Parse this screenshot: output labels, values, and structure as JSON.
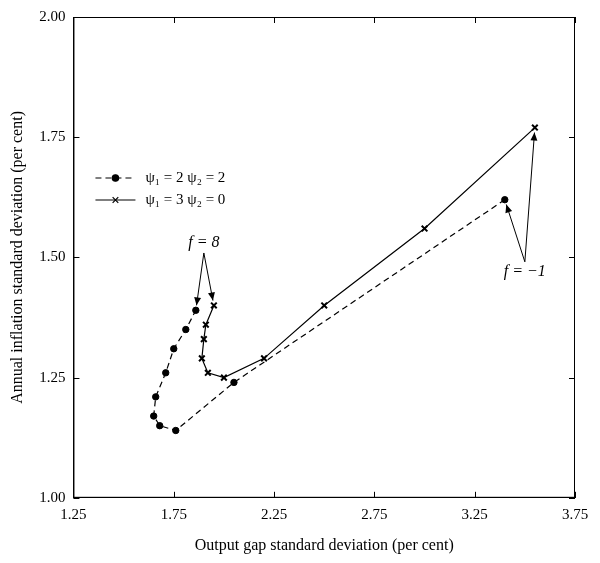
{
  "chart_data": {
    "type": "line",
    "x_label": "Output gap standard deviation (per cent)",
    "y_label": "Annual inflation standard deviation (per cent)",
    "xlim": [
      1.25,
      3.75
    ],
    "xticks": [
      1.25,
      1.75,
      2.25,
      2.75,
      3.25,
      3.75
    ],
    "ylim": [
      1,
      2
    ],
    "yticks": [
      {
        "value": 1,
        "label": "1.00"
      },
      1.25,
      {
        "value": 1.5,
        "label": "1.50"
      },
      1.75,
      {
        "value": 2,
        "label": "2.00"
      }
    ],
    "grid": false,
    "legend": "upper left",
    "series": [
      {
        "name": "ψ₁ = 2 ψ₂ = 2",
        "color": "#000000",
        "marker": "circle",
        "line_style": "dashed",
        "x": [
          3.4,
          2.05,
          1.76,
          1.68,
          1.65,
          1.66,
          1.71,
          1.75,
          1.81,
          1.86
        ],
        "values": [
          1.62,
          1.24,
          1.14,
          1.15,
          1.17,
          1.21,
          1.26,
          1.31,
          1.35,
          1.39
        ]
      },
      {
        "name": "ψ₁ = 3 ψ₂ = 0",
        "color": "#000000",
        "marker": "cross",
        "line_style": "solid",
        "x": [
          3.55,
          3.0,
          2.5,
          2.2,
          2.0,
          1.92,
          1.89,
          1.9,
          1.91,
          1.95
        ],
        "values": [
          1.77,
          1.56,
          1.4,
          1.29,
          1.25,
          1.26,
          1.29,
          1.33,
          1.36,
          1.4
        ]
      }
    ],
    "annotations": [
      {
        "text": "f = 8",
        "x": 1.9,
        "y": 1.53
      },
      {
        "text": "f = −1",
        "x": 3.5,
        "y": 1.47
      }
    ]
  }
}
